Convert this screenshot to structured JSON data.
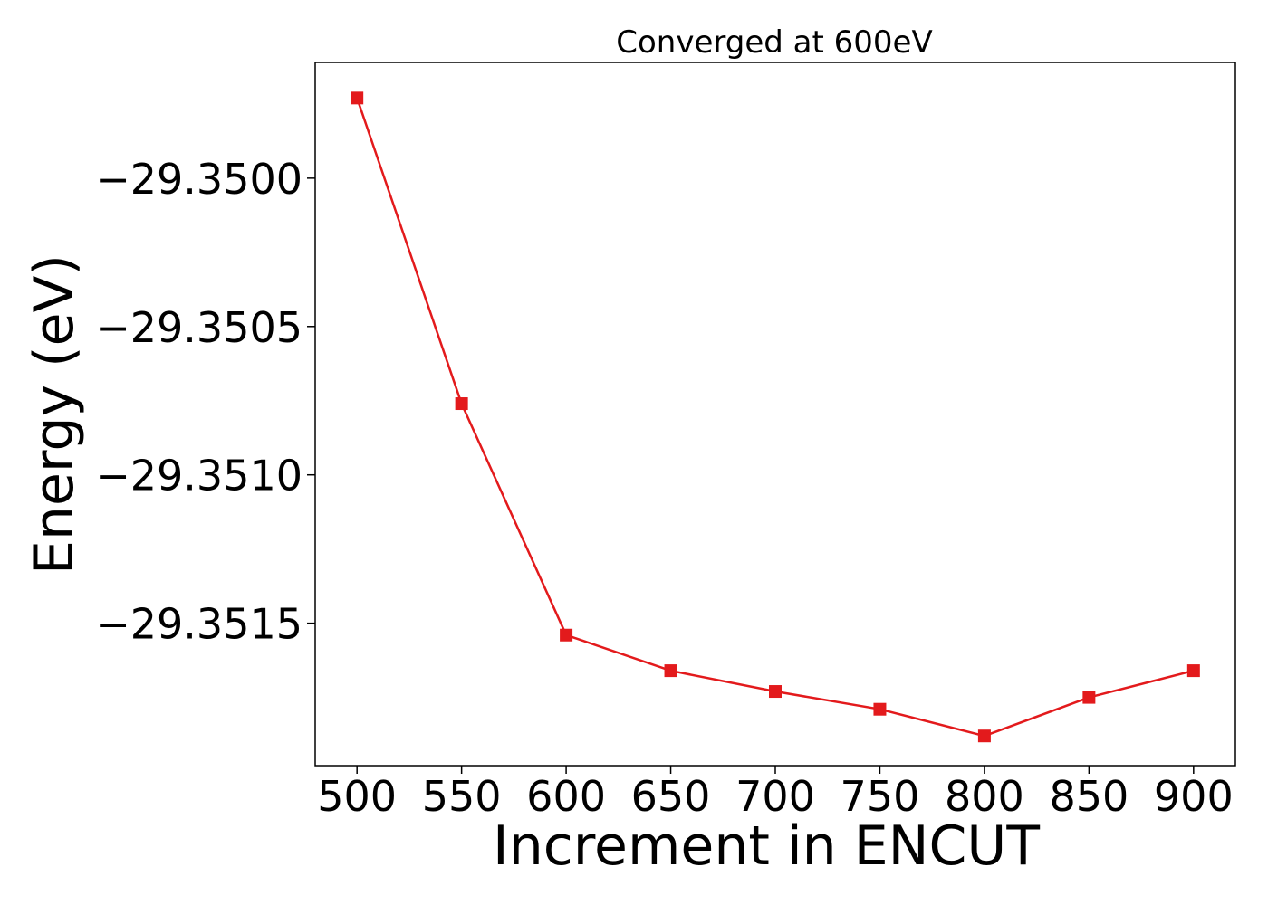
{
  "chart_data": {
    "type": "line",
    "title": "Converged at 600eV",
    "xlabel": "Increment in ENCUT",
    "ylabel": "Energy (eV)",
    "xlim": [
      480,
      920
    ],
    "ylim": [
      -29.35198,
      -29.34961
    ],
    "x_ticks": [
      500,
      550,
      600,
      650,
      700,
      750,
      800,
      850,
      900
    ],
    "x_tick_labels": [
      "500",
      "550",
      "600",
      "650",
      "700",
      "750",
      "800",
      "850",
      "900"
    ],
    "y_ticks": [
      -29.35,
      -29.3505,
      -29.351,
      -29.3515
    ],
    "y_tick_labels": [
      "−29.3500",
      "−29.3505",
      "−29.3510",
      "−29.3515"
    ],
    "grid": false,
    "series": [
      {
        "x": [
          500,
          550,
          600,
          650,
          700,
          750,
          800,
          850,
          900
        ],
        "y": [
          -29.34973,
          -29.35076,
          -29.35154,
          -29.35166,
          -29.35173,
          -29.35179,
          -29.35188,
          -29.35175,
          -29.35166
        ],
        "color": "#e31a1c",
        "marker": "square"
      }
    ]
  }
}
